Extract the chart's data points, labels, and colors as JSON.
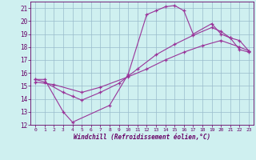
{
  "xlabel": "Windchill (Refroidissement éolien,°C)",
  "xlim": [
    -0.5,
    23.5
  ],
  "ylim": [
    12,
    21.5
  ],
  "yticks": [
    12,
    13,
    14,
    15,
    16,
    17,
    18,
    19,
    20,
    21
  ],
  "xticks": [
    0,
    1,
    2,
    3,
    4,
    5,
    6,
    7,
    8,
    9,
    10,
    11,
    12,
    13,
    14,
    15,
    16,
    17,
    18,
    19,
    20,
    21,
    22,
    23
  ],
  "bg_color": "#cff0f0",
  "grid_color": "#99bbcc",
  "line_color": "#993399",
  "line1_x": [
    0,
    1,
    3,
    4,
    8,
    10,
    12,
    13,
    14,
    15,
    16,
    17,
    19,
    20,
    21,
    22,
    23
  ],
  "line1_y": [
    15.5,
    15.5,
    13.0,
    12.2,
    13.5,
    15.9,
    20.5,
    20.8,
    21.1,
    21.2,
    20.8,
    19.0,
    19.8,
    19.0,
    18.7,
    17.8,
    17.6
  ],
  "line2_x": [
    0,
    1,
    3,
    4,
    5,
    7,
    9,
    11,
    13,
    15,
    17,
    19,
    20,
    21,
    22,
    23
  ],
  "line2_y": [
    15.5,
    15.3,
    14.5,
    14.2,
    13.9,
    14.5,
    15.2,
    16.3,
    17.4,
    18.2,
    18.9,
    19.5,
    19.2,
    18.7,
    18.5,
    17.7
  ],
  "line3_x": [
    0,
    2,
    5,
    7,
    10,
    12,
    14,
    16,
    18,
    20,
    22,
    23
  ],
  "line3_y": [
    15.3,
    15.1,
    14.5,
    14.9,
    15.7,
    16.3,
    17.0,
    17.6,
    18.1,
    18.5,
    18.0,
    17.7
  ]
}
